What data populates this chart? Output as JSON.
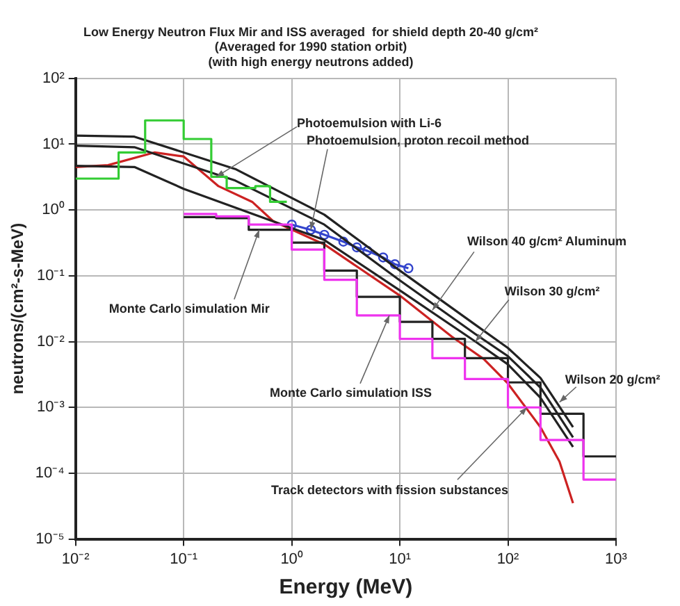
{
  "chart_data": {
    "type": "line",
    "title": "Low Energy Neutron Flux Mir and ISS averaged  for shield depth 20-40 g/cm²",
    "subtitle": "(Averaged for 1990 station orbit)\n(with high energy neutrons added)",
    "xlabel": "Energy (MeV)",
    "ylabel": "neutrons/(cm²-s-MeV)",
    "log": "xy",
    "grid": true,
    "legend": false,
    "marker": "none",
    "xlim": [
      0.01,
      1000
    ],
    "xticks": [
      {
        "value": 0.01,
        "label": "10⁻²"
      },
      {
        "value": 0.1,
        "label": "10⁻¹"
      },
      {
        "value": 1,
        "label": "10⁰"
      },
      {
        "value": 10,
        "label": "10¹"
      },
      {
        "value": 100,
        "label": "10²"
      },
      {
        "value": 1000,
        "label": "10³"
      }
    ],
    "ylim": [
      1e-05,
      100
    ],
    "yticks": [
      {
        "value": 1e-05,
        "label": "10⁻⁵"
      },
      {
        "value": 0.0001,
        "label": "10⁻⁴"
      },
      {
        "value": 0.001,
        "label": "10⁻³"
      },
      {
        "value": 0.01,
        "label": "10⁻²"
      },
      {
        "value": 0.1,
        "label": "10⁻¹"
      },
      {
        "value": 1,
        "label": "10⁰"
      },
      {
        "value": 10,
        "label": "10¹"
      },
      {
        "value": 100,
        "label": "10²"
      }
    ],
    "series": [
      {
        "type": "step",
        "color": "#33cc33",
        "x": [
          0.01,
          0.025,
          0.044,
          0.1,
          0.18,
          0.25,
          0.46,
          0.63,
          0.9
        ],
        "values": [
          3.0,
          7.5,
          23,
          12,
          3.2,
          2.15,
          2.3,
          1.33,
          1.33
        ]
      },
      {
        "type": "step",
        "color": "#ee33ee",
        "x": [
          0.1,
          0.2,
          0.4,
          1,
          2,
          4,
          10,
          20,
          40,
          100,
          200,
          500,
          1000
        ],
        "values": [
          0.87,
          0.8,
          0.6,
          0.25,
          0.087,
          0.025,
          0.011,
          0.0056,
          0.0027,
          0.001,
          0.00032,
          8e-05,
          8e-05
        ]
      },
      {
        "type": "step",
        "color": "#222222",
        "x": [
          0.1,
          0.2,
          0.4,
          1,
          2,
          4,
          10,
          20,
          40,
          100,
          200,
          500,
          1000
        ],
        "values": [
          0.78,
          0.75,
          0.5,
          0.32,
          0.12,
          0.048,
          0.02,
          0.011,
          0.0056,
          0.0024,
          0.0008,
          0.00018,
          0.00018
        ]
      },
      {
        "color": "#222222",
        "x": [
          0.01,
          0.035,
          0.3,
          2,
          10,
          50,
          100,
          200,
          400
        ],
        "values": [
          13.5,
          13,
          4.2,
          0.85,
          0.12,
          0.018,
          0.008,
          0.0028,
          0.0005
        ]
      },
      {
        "color": "#222222",
        "x": [
          0.01,
          0.035,
          0.3,
          2,
          10,
          50,
          100,
          200,
          400
        ],
        "values": [
          9.5,
          9,
          2.8,
          0.6,
          0.085,
          0.013,
          0.006,
          0.002,
          0.00035
        ]
      },
      {
        "color": "#222222",
        "x": [
          0.01,
          0.035,
          0.1,
          0.5,
          2,
          10,
          50,
          100,
          200,
          400
        ],
        "values": [
          4.7,
          4.5,
          2.1,
          0.8,
          0.35,
          0.06,
          0.01,
          0.0045,
          0.0014,
          0.00025
        ]
      },
      {
        "color": "#cc2222",
        "x": [
          0.01,
          0.02,
          0.054,
          0.1,
          0.21,
          0.43,
          0.67,
          2,
          10,
          30,
          60,
          100,
          200,
          300,
          400
        ],
        "values": [
          4.5,
          4.8,
          7.5,
          6.5,
          2.3,
          1.33,
          0.68,
          0.3,
          0.05,
          0.012,
          0.0054,
          0.0023,
          0.0005,
          0.00015,
          3.5e-05
        ]
      },
      {
        "color": "#3344cc",
        "marker": "circle",
        "x": [
          1,
          1.5,
          2,
          3,
          4,
          5,
          7,
          9,
          12
        ],
        "values": [
          0.6,
          0.5,
          0.42,
          0.33,
          0.27,
          0.24,
          0.19,
          0.15,
          0.13
        ]
      }
    ],
    "annotations": [
      {
        "text": "Photoemulsion with Li-6",
        "x": 0.2,
        "y": 3.2
      },
      {
        "text": "Photoemulsion, proton recoil method",
        "x": 1.5,
        "y": 0.5
      },
      {
        "text": "Monte Carlo simulation Mir",
        "x": 0.5,
        "y": 0.5
      },
      {
        "text": "Wilson 40 g/cm² Aluminum",
        "x": 20,
        "y": 0.03
      },
      {
        "text": "Wilson 30 g/cm²",
        "x": 50,
        "y": 0.01
      },
      {
        "text": "Monte Carlo simulation ISS",
        "x": 8,
        "y": 0.025
      },
      {
        "text": "Wilson 20 g/cm²",
        "x": 300,
        "y": 0.0012
      },
      {
        "text": "Track detectors with fission substances",
        "x": 150,
        "y": 0.001
      }
    ]
  }
}
